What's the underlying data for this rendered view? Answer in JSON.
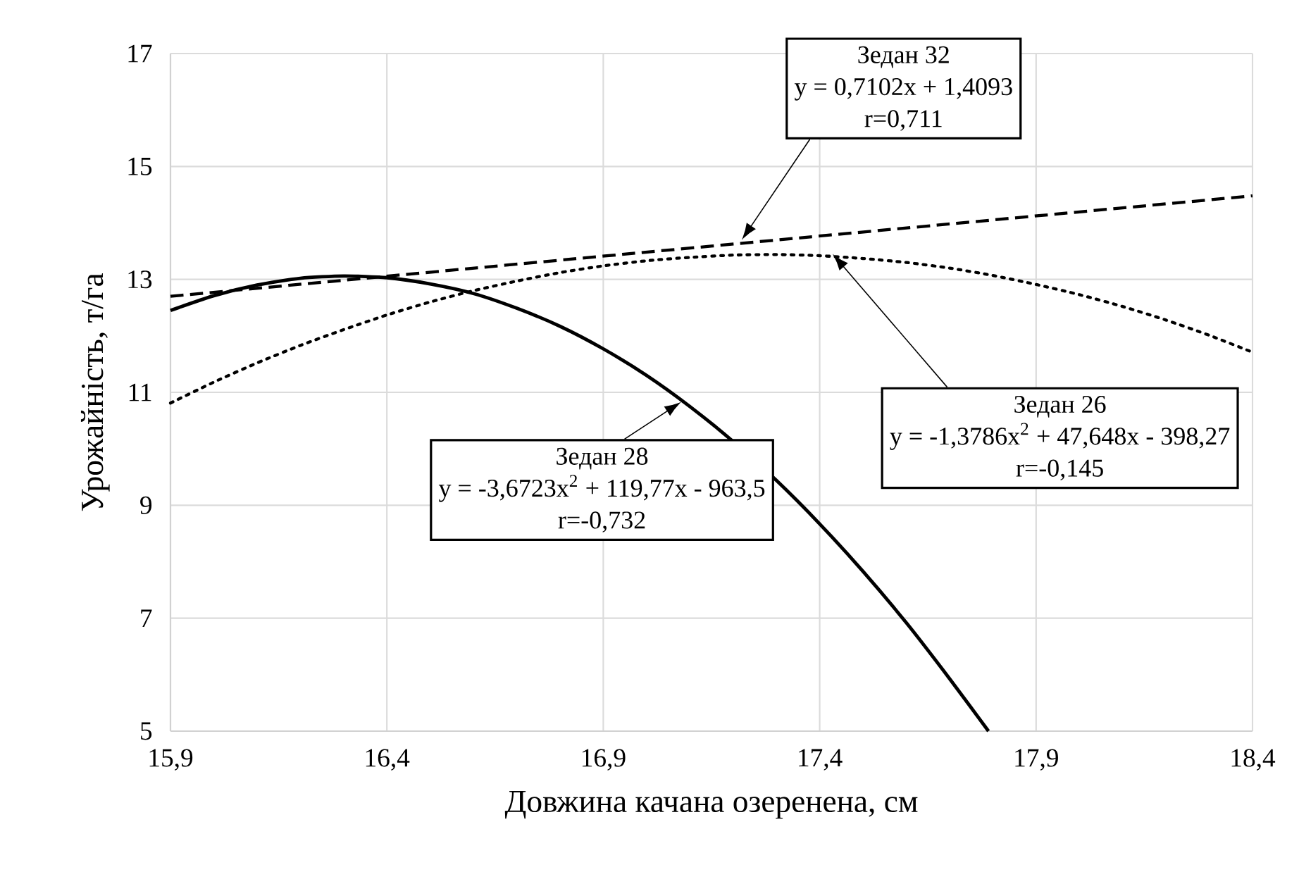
{
  "chart_data": {
    "type": "line",
    "xlabel": "Довжина качана озеренена, см",
    "ylabel": "Урожайність, т/га",
    "xlim": [
      15.9,
      18.4
    ],
    "ylim": [
      5,
      17
    ],
    "xticks": [
      {
        "value": 15.9,
        "label": "15,9"
      },
      {
        "value": 16.4,
        "label": "16,4"
      },
      {
        "value": 16.9,
        "label": "16,9"
      },
      {
        "value": 17.4,
        "label": "17,4"
      },
      {
        "value": 17.9,
        "label": "17,9"
      },
      {
        "value": 18.4,
        "label": "18,4"
      }
    ],
    "yticks": [
      5,
      7,
      9,
      11,
      13,
      15,
      17
    ],
    "grid": true,
    "series": [
      {
        "color": "#000000",
        "line_style": "dashed",
        "x": [
          15.9,
          18.4
        ],
        "values": [
          12.7,
          14.48
        ]
      },
      {
        "color": "#000000",
        "line_style": "dotted",
        "x": [
          15.9,
          16.0,
          16.1,
          16.2,
          16.3,
          16.4,
          16.5,
          16.6,
          16.7,
          16.8,
          16.9,
          17.0,
          17.1,
          17.2,
          17.3,
          17.4,
          17.5,
          17.6,
          17.7,
          17.8,
          17.9,
          18.0,
          18.1,
          18.2,
          18.3,
          18.4
        ],
        "values": [
          10.81,
          11.18,
          11.52,
          11.83,
          12.11,
          12.37,
          12.6,
          12.8,
          12.97,
          13.12,
          13.24,
          13.33,
          13.39,
          13.43,
          13.44,
          13.42,
          13.37,
          13.3,
          13.2,
          13.07,
          12.91,
          12.73,
          12.52,
          12.28,
          12.01,
          11.71
        ]
      },
      {
        "color": "#000000",
        "line_style": "solid",
        "x": [
          15.9,
          16.0,
          16.1,
          16.2,
          16.3,
          16.4,
          16.5,
          16.6,
          16.7,
          16.8,
          16.9,
          17.0,
          17.1,
          17.2,
          17.3,
          17.4,
          17.5,
          17.6,
          17.7,
          17.79
        ],
        "values": [
          12.45,
          12.71,
          12.9,
          13.02,
          13.06,
          13.03,
          12.92,
          12.75,
          12.49,
          12.17,
          11.77,
          11.3,
          10.75,
          10.13,
          9.44,
          8.67,
          7.83,
          6.92,
          5.93,
          5.0
        ]
      }
    ],
    "annotations": [
      "Зедан 32",
      "y = 0,7102x + 1,4093",
      "r=0,711",
      "Зедан 26",
      "y = -1,3786x$^{2}$ + 47,648x - 398,27",
      "r=-0,145",
      "Зедан 28",
      {
        "text": "y = -3,6723x$^{2}$ + 119,77x - 963,5",
        "x": 17.08,
        "y": 10.83
      },
      "r=-0,732"
    ]
  }
}
